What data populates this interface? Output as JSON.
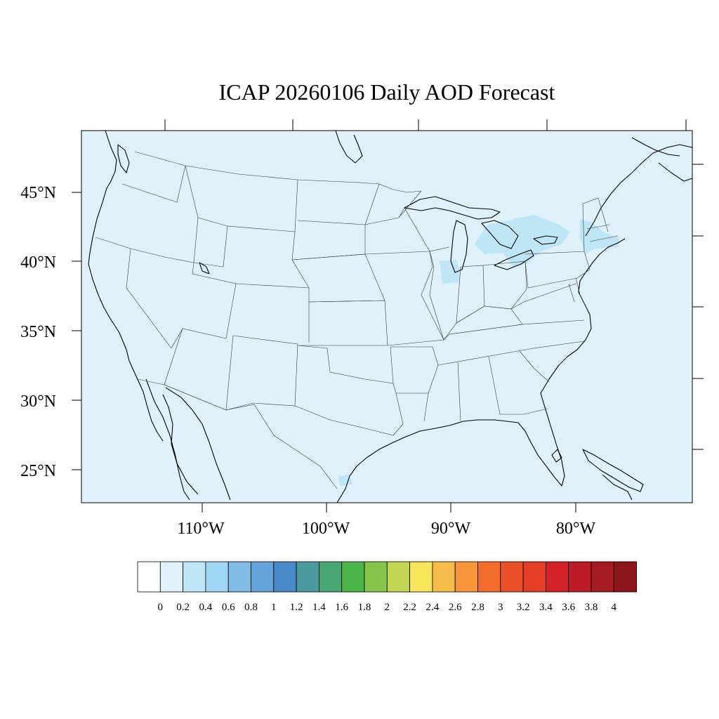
{
  "title": "ICAP 20260106 Daily AOD Forecast",
  "longitude_labels": [
    "110°W",
    "100°W",
    "90°W",
    "80°W"
  ],
  "latitude_labels": [
    "45°N",
    "40°N",
    "35°N",
    "30°N",
    "25°N"
  ],
  "colorbar": {
    "labels": [
      "0",
      "0.2",
      "0.4",
      "0.6",
      "0.8",
      "1",
      "1.2",
      "1.4",
      "1.6",
      "1.8",
      "2",
      "2.2",
      "2.4",
      "2.6",
      "2.8",
      "3",
      "3.2",
      "3.4",
      "3.6",
      "3.8",
      "4"
    ],
    "colors": [
      "#ffffff",
      "#dff2fb",
      "#bfe6f7",
      "#9fd6f3",
      "#80bce6",
      "#64a3d9",
      "#4a89c8",
      "#4a9aa0",
      "#48a673",
      "#4bb549",
      "#86c54c",
      "#c2d654",
      "#f7e55a",
      "#f7bd4b",
      "#f6953c",
      "#f26c2c",
      "#ea5028",
      "#e43d26",
      "#d42128",
      "#bb1b24",
      "#a61a21",
      "#8e151b"
    ]
  },
  "background_color": "#dff2fb",
  "aod_hotspot_color": "#bfe6f7"
}
